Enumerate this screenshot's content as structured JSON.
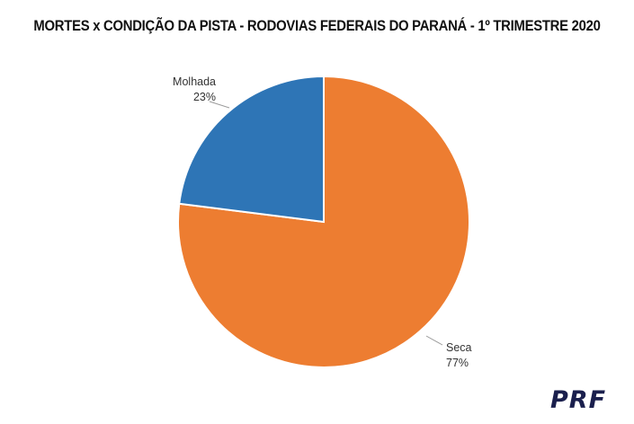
{
  "chart_data": {
    "type": "pie",
    "title": "MORTES x CONDIÇÃO DA PISTA - RODOVIAS FEDERAIS DO PARANÁ - 1º TRIMESTRE 2020",
    "slices": [
      {
        "label": "Seca",
        "value": 77,
        "value_label": "77%",
        "color": "#ED7D31"
      },
      {
        "label": "Molhada",
        "value": 23,
        "value_label": "23%",
        "color": "#2E75B6"
      }
    ],
    "start_angle_deg": 0,
    "direction": "clockwise"
  },
  "logo": {
    "text": "PRF"
  }
}
